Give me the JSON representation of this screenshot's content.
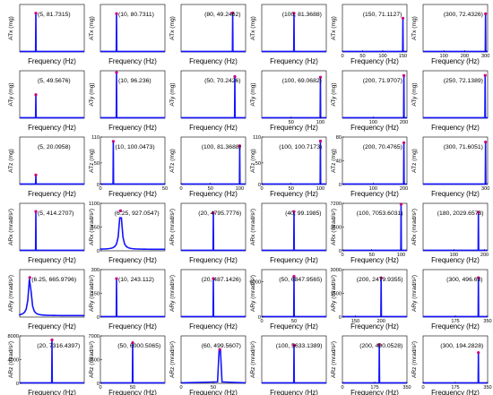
{
  "xlabel": "Frequency (Hz)",
  "chart_data": [
    {
      "type": "line",
      "ylabel": "ATx (mg)",
      "xlim": [
        0,
        20
      ],
      "ylim": [
        0,
        100
      ],
      "xticks": [],
      "yticks": [],
      "peak": {
        "x": 5,
        "y": 81.7315
      },
      "peak_label": "(5, 81.7315)",
      "shape": "spike"
    },
    {
      "type": "line",
      "ylabel": "ATx (mg)",
      "xlim": [
        0,
        40
      ],
      "ylim": [
        0,
        100
      ],
      "xticks": [],
      "yticks": [],
      "peak": {
        "x": 10,
        "y": 80.7311
      },
      "peak_label": "(10, 80.7311)",
      "shape": "spike"
    },
    {
      "type": "line",
      "ylabel": "ATx (mg)",
      "xlim": [
        0,
        100
      ],
      "ylim": [
        0,
        60
      ],
      "xticks": [],
      "yticks": [],
      "peak": {
        "x": 80,
        "y": 49.2462
      },
      "peak_label": "(80, 49.2462)",
      "shape": "spike"
    },
    {
      "type": "line",
      "ylabel": "ATx (mg)",
      "xlim": [
        0,
        200
      ],
      "ylim": [
        0,
        100
      ],
      "xticks": [],
      "yticks": [],
      "peak": {
        "x": 100,
        "y": 81.3688
      },
      "peak_label": "(100, 81.3688)",
      "shape": "spike"
    },
    {
      "type": "line",
      "ylabel": "ATx (mg)",
      "xlim": [
        0,
        160
      ],
      "ylim": [
        0,
        100
      ],
      "xticks": [
        "0",
        "50",
        "100",
        "150"
      ],
      "yticks": [],
      "peak": {
        "x": 150,
        "y": 71.1127
      },
      "peak_label": "(150, 71.1127)",
      "shape": "spike"
    },
    {
      "type": "line",
      "ylabel": "ATx (mg)",
      "xlim": [
        0,
        310
      ],
      "ylim": [
        0,
        90
      ],
      "xticks": [
        "100",
        "200",
        "300"
      ],
      "yticks": [],
      "peak": {
        "x": 300,
        "y": 72.4326
      },
      "peak_label": "(300, 72.4326)",
      "shape": "spike"
    },
    {
      "type": "line",
      "ylabel": "ATy (mg)",
      "xlim": [
        0,
        20
      ],
      "ylim": [
        0,
        100
      ],
      "xticks": [],
      "yticks": [],
      "peak": {
        "x": 5,
        "y": 49.5676
      },
      "peak_label": "(5, 49.5676)",
      "shape": "spike"
    },
    {
      "type": "line",
      "ylabel": "ATy (mg)",
      "xlim": [
        0,
        40
      ],
      "ylim": [
        0,
        100
      ],
      "xticks": [],
      "yticks": [],
      "peak": {
        "x": 10,
        "y": 96.236
      },
      "peak_label": "(10, 96.236)",
      "shape": "spike"
    },
    {
      "type": "line",
      "ylabel": "ATy (mg)",
      "xlim": [
        0,
        60
      ],
      "ylim": [
        0,
        80
      ],
      "xticks": [],
      "yticks": [],
      "peak": {
        "x": 50,
        "y": 70.2426
      },
      "peak_label": "(50, 70.2426)",
      "shape": "spike"
    },
    {
      "type": "line",
      "ylabel": "ATy (mg)",
      "xlim": [
        0,
        110
      ],
      "ylim": [
        0,
        80
      ],
      "xticks": [
        "50",
        "100"
      ],
      "yticks": [],
      "peak": {
        "x": 100,
        "y": 69.0682
      },
      "peak_label": "(100, 69.0682)",
      "shape": "spike"
    },
    {
      "type": "line",
      "ylabel": "ATy (mg)",
      "xlim": [
        0,
        210
      ],
      "ylim": [
        0,
        80
      ],
      "xticks": [
        "100",
        "200"
      ],
      "yticks": [],
      "peak": {
        "x": 200,
        "y": 71.9707
      },
      "peak_label": "(200, 71.9707)",
      "shape": "spike"
    },
    {
      "type": "line",
      "ylabel": "ATy (mg)",
      "xlim": [
        0,
        260
      ],
      "ylim": [
        0,
        80
      ],
      "xticks": [],
      "yticks": [],
      "peak": {
        "x": 250,
        "y": 72.1389
      },
      "peak_label": "(250, 72.1389)",
      "shape": "spike"
    },
    {
      "type": "line",
      "ylabel": "ATz (mg)",
      "xlim": [
        0,
        20
      ],
      "ylim": [
        0,
        100
      ],
      "xticks": [],
      "yticks": [],
      "peak": {
        "x": 5,
        "y": 20.0958
      },
      "peak_label": "(5, 20.0958)",
      "shape": "spike"
    },
    {
      "type": "line",
      "ylabel": "ATz (mg)",
      "xlim": [
        0,
        50
      ],
      "ylim": [
        0,
        110
      ],
      "xticks": [
        "0",
        "50"
      ],
      "yticks": [
        "0",
        "50",
        "110"
      ],
      "peak": {
        "x": 10,
        "y": 100.0473
      },
      "peak_label": "(10, 100.0473)",
      "shape": "spike"
    },
    {
      "type": "line",
      "ylabel": "ATz (mg)",
      "xlim": [
        0,
        110
      ],
      "ylim": [
        0,
        100
      ],
      "xticks": [
        "0",
        "50",
        "100"
      ],
      "yticks": [],
      "peak": {
        "x": 100,
        "y": 81.3688
      },
      "peak_label": "(100, 81.3688)",
      "shape": "spike"
    },
    {
      "type": "line",
      "ylabel": "ATz (mg)",
      "xlim": [
        0,
        110
      ],
      "ylim": [
        0,
        110
      ],
      "xticks": [
        "0",
        "50",
        "100"
      ],
      "yticks": [
        "0",
        "50",
        "110"
      ],
      "peak": {
        "x": 100,
        "y": 100.7173
      },
      "peak_label": "(100, 100.7173)",
      "shape": "spike"
    },
    {
      "type": "line",
      "ylabel": "ATz (mg)",
      "xlim": [
        0,
        210
      ],
      "ylim": [
        0,
        80
      ],
      "xticks": [
        "100",
        "200"
      ],
      "yticks": [
        "0",
        "40",
        "80"
      ],
      "peak": {
        "x": 200,
        "y": 70.4765
      },
      "peak_label": "(200, 70.4765)",
      "shape": "spike"
    },
    {
      "type": "line",
      "ylabel": "ATz (mg)",
      "xlim": [
        0,
        310
      ],
      "ylim": [
        0,
        80
      ],
      "xticks": [
        "300"
      ],
      "yticks": [],
      "peak": {
        "x": 300,
        "y": 71.6051
      },
      "peak_label": "(300, 71.6051)",
      "shape": "spike"
    },
    {
      "type": "line",
      "ylabel": "ARx (mrad/s²)",
      "xlim": [
        0,
        20
      ],
      "ylim": [
        0,
        500
      ],
      "xticks": [],
      "yticks": [],
      "peak": {
        "x": 5,
        "y": 414.2707
      },
      "peak_label": "(5, 414.2707)",
      "shape": "spike"
    },
    {
      "type": "line",
      "ylabel": "ARx (mrad/s²)",
      "xlim": [
        0,
        20
      ],
      "ylim": [
        0,
        1100
      ],
      "xticks": [],
      "yticks": [
        "0",
        "550",
        "1100"
      ],
      "peak": {
        "x": 6.25,
        "y": 927.0547
      },
      "peak_label": "(6.25, 927.0547)",
      "shape": "resonance"
    },
    {
      "type": "line",
      "ylabel": "ARx (mrad/s²)",
      "xlim": [
        0,
        40
      ],
      "ylim": [
        0,
        6000
      ],
      "xticks": [],
      "yticks": [],
      "peak": {
        "x": 20,
        "y": 4795.7776
      },
      "peak_label": "(20, 4795.7776)",
      "shape": "spike"
    },
    {
      "type": "line",
      "ylabel": "ARx (mrad/s²)",
      "xlim": [
        0,
        80
      ],
      "ylim": [
        0,
        120
      ],
      "xticks": [],
      "yticks": [],
      "peak": {
        "x": 40,
        "y": 99.1985
      },
      "peak_label": "(40, 99.1985)",
      "shape": "spike"
    },
    {
      "type": "line",
      "ylabel": "ARx (mrad/s²)",
      "xlim": [
        0,
        110
      ],
      "ylim": [
        0,
        7200
      ],
      "xticks": [
        "0",
        "50",
        "100"
      ],
      "yticks": [
        "0",
        "3600",
        "7200"
      ],
      "peak": {
        "x": 100,
        "y": 7053.6031
      },
      "peak_label": "(100, 7053.6031)",
      "shape": "spike"
    },
    {
      "type": "line",
      "ylabel": "ARx (mrad/s²)",
      "xlim": [
        0,
        210
      ],
      "ylim": [
        0,
        2500
      ],
      "xticks": [
        "100",
        "200"
      ],
      "yticks": [],
      "peak": {
        "x": 180,
        "y": 2029.6573
      },
      "peak_label": "(180, 2029.6573)",
      "shape": "spike"
    },
    {
      "type": "line",
      "ylabel": "ARy (mrad/s²)",
      "xlim": [
        0,
        40
      ],
      "ylim": [
        0,
        800
      ],
      "xticks": [],
      "yticks": [],
      "peak": {
        "x": 6.25,
        "y": 665.9796
      },
      "peak_label": "(6.25, 665.9796)",
      "shape": "resonance"
    },
    {
      "type": "line",
      "ylabel": "ARy (mrad/s²)",
      "xlim": [
        0,
        40
      ],
      "ylim": [
        0,
        300
      ],
      "xticks": [],
      "yticks": [
        "0",
        "150",
        "300"
      ],
      "peak": {
        "x": 10,
        "y": 243.112
      },
      "peak_label": "(10, 243.112)",
      "shape": "spike"
    },
    {
      "type": "line",
      "ylabel": "ARy (mrad/s²)",
      "xlim": [
        0,
        40
      ],
      "ylim": [
        0,
        600
      ],
      "xticks": [],
      "yticks": [],
      "peak": {
        "x": 20,
        "y": 487.1426
      },
      "peak_label": "(20, 487.1426)",
      "shape": "spike"
    },
    {
      "type": "line",
      "ylabel": "ARy (mrad/s²)",
      "xlim": [
        0,
        100
      ],
      "ylim": [
        0,
        8000
      ],
      "xticks": [
        "0",
        "50"
      ],
      "yticks": [
        "0",
        "6000"
      ],
      "peak": {
        "x": 50,
        "y": 6847.9565
      },
      "peak_label": "(50, 6847.9565)",
      "shape": "spike"
    },
    {
      "type": "line",
      "ylabel": "ARy (mrad/s²)",
      "xlim": [
        125,
        250
      ],
      "ylim": [
        0,
        3000
      ],
      "xticks": [
        "150",
        "200"
      ],
      "yticks": [
        "0",
        "1500",
        "3000"
      ],
      "peak": {
        "x": 200,
        "y": 2479.9355
      },
      "peak_label": "(200, 2479.9355)",
      "shape": "spike"
    },
    {
      "type": "line",
      "ylabel": "ARy (mrad/s²)",
      "xlim": [
        0,
        350
      ],
      "ylim": [
        0,
        600
      ],
      "xticks": [
        "175",
        "350"
      ],
      "yticks": [],
      "peak": {
        "x": 300,
        "y": 496.63
      },
      "peak_label": "(300, 496.63)",
      "shape": "spike"
    },
    {
      "type": "line",
      "ylabel": "ARz (mrad/s²)",
      "xlim": [
        0,
        40
      ],
      "ylim": [
        0,
        8000
      ],
      "xticks": [],
      "yticks": [
        "0",
        "4000",
        "8000"
      ],
      "peak": {
        "x": 20,
        "y": 7316.4397
      },
      "peak_label": "(20, 7316.4397)",
      "shape": "spike"
    },
    {
      "type": "line",
      "ylabel": "ARz (mrad/s²)",
      "xlim": [
        0,
        100
      ],
      "ylim": [
        0,
        7000
      ],
      "xticks": [
        "0",
        "50"
      ],
      "yticks": [
        "0",
        "3500",
        "7000"
      ],
      "peak": {
        "x": 50,
        "y": 6000.5065
      },
      "peak_label": "(50, 6000.5065)",
      "shape": "spike"
    },
    {
      "type": "line",
      "ylabel": "ARz (mrad/s²)",
      "xlim": [
        0,
        100
      ],
      "ylim": [
        0,
        700
      ],
      "xticks": [
        "0",
        "50"
      ],
      "yticks": [],
      "peak": {
        "x": 60,
        "y": 499.5607
      },
      "peak_label": "(60, 499.5607)",
      "shape": "wide-spike"
    },
    {
      "type": "line",
      "ylabel": "ARz (mrad/s²)",
      "xlim": [
        0,
        200
      ],
      "ylim": [
        0,
        7000
      ],
      "xticks": [],
      "yticks": [],
      "peak": {
        "x": 100,
        "y": 5633.1389
      },
      "peak_label": "(100, 5633.1389)",
      "shape": "spike"
    },
    {
      "type": "line",
      "ylabel": "ARz (mrad/s²)",
      "xlim": [
        0,
        350
      ],
      "ylim": [
        0,
        600
      ],
      "xticks": [
        "0",
        "175",
        "350"
      ],
      "yticks": [],
      "peak": {
        "x": 200,
        "y": 490.0528
      },
      "peak_label": "(200, 490.0528)",
      "shape": "spike"
    },
    {
      "type": "line",
      "ylabel": "ARz (mrad/s²)",
      "xlim": [
        0,
        350
      ],
      "ylim": [
        0,
        300
      ],
      "xticks": [
        "0",
        "175",
        "350"
      ],
      "yticks": [],
      "peak": {
        "x": 300,
        "y": 194.2828
      },
      "peak_label": "(300, 194.2828)",
      "shape": "spike"
    }
  ]
}
